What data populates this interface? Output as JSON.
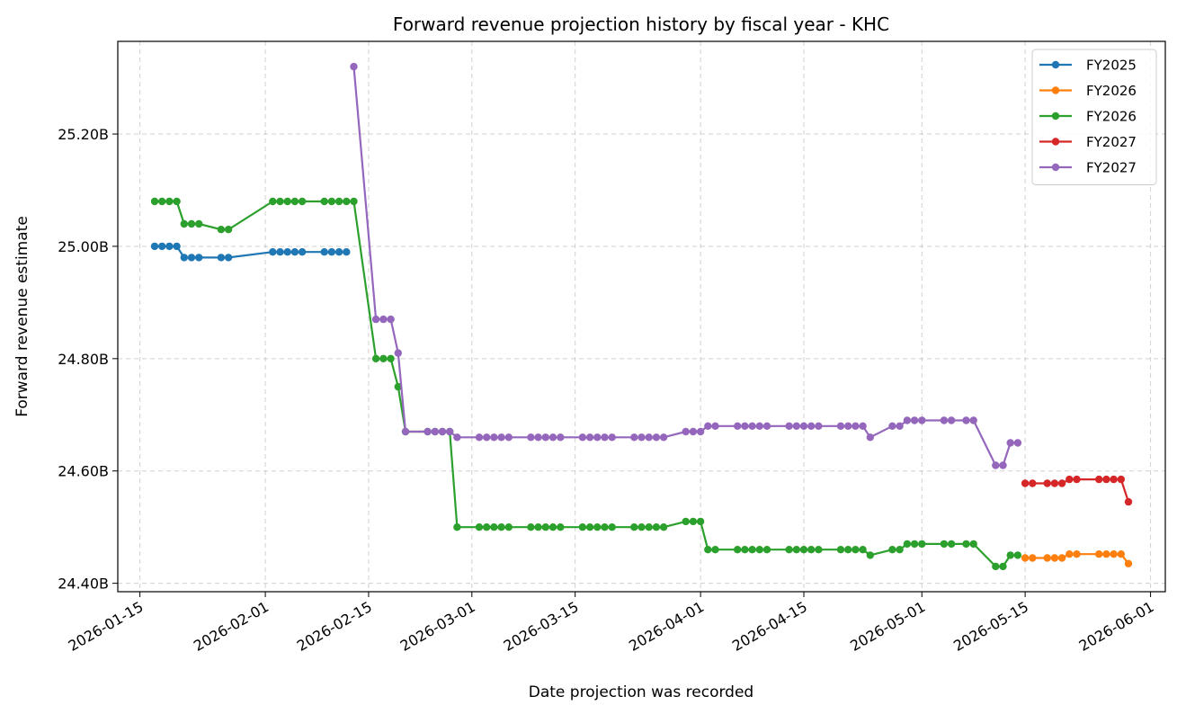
{
  "chart_data": {
    "type": "line",
    "title": "Forward revenue projection history by fiscal year - KHC",
    "xlabel": "Date projection was recorded",
    "ylabel": "Forward revenue estimate",
    "xlim": [
      "2026-01-12",
      "2026-06-03"
    ],
    "ylim": [
      24.385,
      25.365
    ],
    "y_unit": "B",
    "x_ticks": [
      "2026-01-15",
      "2026-02-01",
      "2026-02-15",
      "2026-03-01",
      "2026-03-15",
      "2026-04-01",
      "2026-04-15",
      "2026-05-01",
      "2026-05-15",
      "2026-06-01"
    ],
    "y_ticks": [
      24.4,
      24.6,
      24.8,
      25.0,
      25.2
    ],
    "y_tick_labels": [
      "24.40B",
      "24.60B",
      "24.80B",
      "25.00B",
      "25.20B"
    ],
    "grid": true,
    "legend_position": "top-right",
    "series": [
      {
        "name": "FY2025",
        "color": "#1f77b4",
        "points": [
          [
            "2026-01-17",
            25.0
          ],
          [
            "2026-01-18",
            25.0
          ],
          [
            "2026-01-19",
            25.0
          ],
          [
            "2026-01-20",
            25.0
          ],
          [
            "2026-01-21",
            24.98
          ],
          [
            "2026-01-22",
            24.98
          ],
          [
            "2026-01-23",
            24.98
          ],
          [
            "2026-01-26",
            24.98
          ],
          [
            "2026-01-27",
            24.98
          ],
          [
            "2026-02-02",
            24.99
          ],
          [
            "2026-02-03",
            24.99
          ],
          [
            "2026-02-04",
            24.99
          ],
          [
            "2026-02-05",
            24.99
          ],
          [
            "2026-02-06",
            24.99
          ],
          [
            "2026-02-09",
            24.99
          ],
          [
            "2026-02-10",
            24.99
          ],
          [
            "2026-02-11",
            24.99
          ],
          [
            "2026-02-12",
            24.99
          ]
        ]
      },
      {
        "name": "FY2026",
        "color": "#ff7f0e",
        "points": [
          [
            "2026-05-15",
            24.445
          ],
          [
            "2026-05-16",
            24.445
          ],
          [
            "2026-05-18",
            24.445
          ],
          [
            "2026-05-19",
            24.445
          ],
          [
            "2026-05-20",
            24.445
          ],
          [
            "2026-05-21",
            24.452
          ],
          [
            "2026-05-22",
            24.452
          ],
          [
            "2026-05-25",
            24.452
          ],
          [
            "2026-05-26",
            24.452
          ],
          [
            "2026-05-27",
            24.452
          ],
          [
            "2026-05-28",
            24.452
          ],
          [
            "2026-05-29",
            24.435
          ]
        ]
      },
      {
        "name": "FY2026",
        "color": "#2ca02c",
        "points": [
          [
            "2026-01-17",
            25.08
          ],
          [
            "2026-01-18",
            25.08
          ],
          [
            "2026-01-19",
            25.08
          ],
          [
            "2026-01-20",
            25.08
          ],
          [
            "2026-01-21",
            25.04
          ],
          [
            "2026-01-22",
            25.04
          ],
          [
            "2026-01-23",
            25.04
          ],
          [
            "2026-01-26",
            25.03
          ],
          [
            "2026-01-27",
            25.03
          ],
          [
            "2026-02-02",
            25.08
          ],
          [
            "2026-02-03",
            25.08
          ],
          [
            "2026-02-04",
            25.08
          ],
          [
            "2026-02-05",
            25.08
          ],
          [
            "2026-02-06",
            25.08
          ],
          [
            "2026-02-09",
            25.08
          ],
          [
            "2026-02-10",
            25.08
          ],
          [
            "2026-02-11",
            25.08
          ],
          [
            "2026-02-12",
            25.08
          ],
          [
            "2026-02-13",
            25.08
          ],
          [
            "2026-02-16",
            24.8
          ],
          [
            "2026-02-17",
            24.8
          ],
          [
            "2026-02-18",
            24.8
          ],
          [
            "2026-02-19",
            24.75
          ],
          [
            "2026-02-20",
            24.67
          ],
          [
            "2026-02-23",
            24.67
          ],
          [
            "2026-02-24",
            24.67
          ],
          [
            "2026-02-25",
            24.67
          ],
          [
            "2026-02-26",
            24.67
          ],
          [
            "2026-02-27",
            24.5
          ],
          [
            "2026-03-02",
            24.5
          ],
          [
            "2026-03-03",
            24.5
          ],
          [
            "2026-03-04",
            24.5
          ],
          [
            "2026-03-05",
            24.5
          ],
          [
            "2026-03-06",
            24.5
          ],
          [
            "2026-03-09",
            24.5
          ],
          [
            "2026-03-10",
            24.5
          ],
          [
            "2026-03-11",
            24.5
          ],
          [
            "2026-03-12",
            24.5
          ],
          [
            "2026-03-13",
            24.5
          ],
          [
            "2026-03-16",
            24.5
          ],
          [
            "2026-03-17",
            24.5
          ],
          [
            "2026-03-18",
            24.5
          ],
          [
            "2026-03-19",
            24.5
          ],
          [
            "2026-03-20",
            24.5
          ],
          [
            "2026-03-23",
            24.5
          ],
          [
            "2026-03-24",
            24.5
          ],
          [
            "2026-03-25",
            24.5
          ],
          [
            "2026-03-26",
            24.5
          ],
          [
            "2026-03-27",
            24.5
          ],
          [
            "2026-03-30",
            24.51
          ],
          [
            "2026-03-31",
            24.51
          ],
          [
            "2026-04-01",
            24.51
          ],
          [
            "2026-04-02",
            24.46
          ],
          [
            "2026-04-03",
            24.46
          ],
          [
            "2026-04-06",
            24.46
          ],
          [
            "2026-04-07",
            24.46
          ],
          [
            "2026-04-08",
            24.46
          ],
          [
            "2026-04-09",
            24.46
          ],
          [
            "2026-04-10",
            24.46
          ],
          [
            "2026-04-13",
            24.46
          ],
          [
            "2026-04-14",
            24.46
          ],
          [
            "2026-04-15",
            24.46
          ],
          [
            "2026-04-16",
            24.46
          ],
          [
            "2026-04-17",
            24.46
          ],
          [
            "2026-04-20",
            24.46
          ],
          [
            "2026-04-21",
            24.46
          ],
          [
            "2026-04-22",
            24.46
          ],
          [
            "2026-04-23",
            24.46
          ],
          [
            "2026-04-24",
            24.45
          ],
          [
            "2026-04-27",
            24.46
          ],
          [
            "2026-04-28",
            24.46
          ],
          [
            "2026-04-29",
            24.47
          ],
          [
            "2026-04-30",
            24.47
          ],
          [
            "2026-05-01",
            24.47
          ],
          [
            "2026-05-04",
            24.47
          ],
          [
            "2026-05-05",
            24.47
          ],
          [
            "2026-05-07",
            24.47
          ],
          [
            "2026-05-08",
            24.47
          ],
          [
            "2026-05-11",
            24.43
          ],
          [
            "2026-05-12",
            24.43
          ],
          [
            "2026-05-13",
            24.45
          ],
          [
            "2026-05-14",
            24.45
          ]
        ]
      },
      {
        "name": "FY2027",
        "color": "#d62728",
        "points": [
          [
            "2026-05-15",
            24.578
          ],
          [
            "2026-05-16",
            24.578
          ],
          [
            "2026-05-18",
            24.578
          ],
          [
            "2026-05-19",
            24.578
          ],
          [
            "2026-05-20",
            24.578
          ],
          [
            "2026-05-21",
            24.585
          ],
          [
            "2026-05-22",
            24.585
          ],
          [
            "2026-05-25",
            24.585
          ],
          [
            "2026-05-26",
            24.585
          ],
          [
            "2026-05-27",
            24.585
          ],
          [
            "2026-05-28",
            24.585
          ],
          [
            "2026-05-29",
            24.545
          ]
        ]
      },
      {
        "name": "FY2027",
        "color": "#9467bd",
        "points": [
          [
            "2026-02-13",
            25.32
          ],
          [
            "2026-02-16",
            24.87
          ],
          [
            "2026-02-17",
            24.87
          ],
          [
            "2026-02-18",
            24.87
          ],
          [
            "2026-02-19",
            24.81
          ],
          [
            "2026-02-20",
            24.67
          ],
          [
            "2026-02-23",
            24.67
          ],
          [
            "2026-02-24",
            24.67
          ],
          [
            "2026-02-25",
            24.67
          ],
          [
            "2026-02-26",
            24.67
          ],
          [
            "2026-02-27",
            24.66
          ],
          [
            "2026-03-02",
            24.66
          ],
          [
            "2026-03-03",
            24.66
          ],
          [
            "2026-03-04",
            24.66
          ],
          [
            "2026-03-05",
            24.66
          ],
          [
            "2026-03-06",
            24.66
          ],
          [
            "2026-03-09",
            24.66
          ],
          [
            "2026-03-10",
            24.66
          ],
          [
            "2026-03-11",
            24.66
          ],
          [
            "2026-03-12",
            24.66
          ],
          [
            "2026-03-13",
            24.66
          ],
          [
            "2026-03-16",
            24.66
          ],
          [
            "2026-03-17",
            24.66
          ],
          [
            "2026-03-18",
            24.66
          ],
          [
            "2026-03-19",
            24.66
          ],
          [
            "2026-03-20",
            24.66
          ],
          [
            "2026-03-23",
            24.66
          ],
          [
            "2026-03-24",
            24.66
          ],
          [
            "2026-03-25",
            24.66
          ],
          [
            "2026-03-26",
            24.66
          ],
          [
            "2026-03-27",
            24.66
          ],
          [
            "2026-03-30",
            24.67
          ],
          [
            "2026-03-31",
            24.67
          ],
          [
            "2026-04-01",
            24.67
          ],
          [
            "2026-04-02",
            24.68
          ],
          [
            "2026-04-03",
            24.68
          ],
          [
            "2026-04-06",
            24.68
          ],
          [
            "2026-04-07",
            24.68
          ],
          [
            "2026-04-08",
            24.68
          ],
          [
            "2026-04-09",
            24.68
          ],
          [
            "2026-04-10",
            24.68
          ],
          [
            "2026-04-13",
            24.68
          ],
          [
            "2026-04-14",
            24.68
          ],
          [
            "2026-04-15",
            24.68
          ],
          [
            "2026-04-16",
            24.68
          ],
          [
            "2026-04-17",
            24.68
          ],
          [
            "2026-04-20",
            24.68
          ],
          [
            "2026-04-21",
            24.68
          ],
          [
            "2026-04-22",
            24.68
          ],
          [
            "2026-04-23",
            24.68
          ],
          [
            "2026-04-24",
            24.66
          ],
          [
            "2026-04-27",
            24.68
          ],
          [
            "2026-04-28",
            24.68
          ],
          [
            "2026-04-29",
            24.69
          ],
          [
            "2026-04-30",
            24.69
          ],
          [
            "2026-05-01",
            24.69
          ],
          [
            "2026-05-04",
            24.69
          ],
          [
            "2026-05-05",
            24.69
          ],
          [
            "2026-05-07",
            24.69
          ],
          [
            "2026-05-08",
            24.69
          ],
          [
            "2026-05-11",
            24.61
          ],
          [
            "2026-05-12",
            24.61
          ],
          [
            "2026-05-13",
            24.65
          ],
          [
            "2026-05-14",
            24.65
          ]
        ]
      }
    ]
  }
}
